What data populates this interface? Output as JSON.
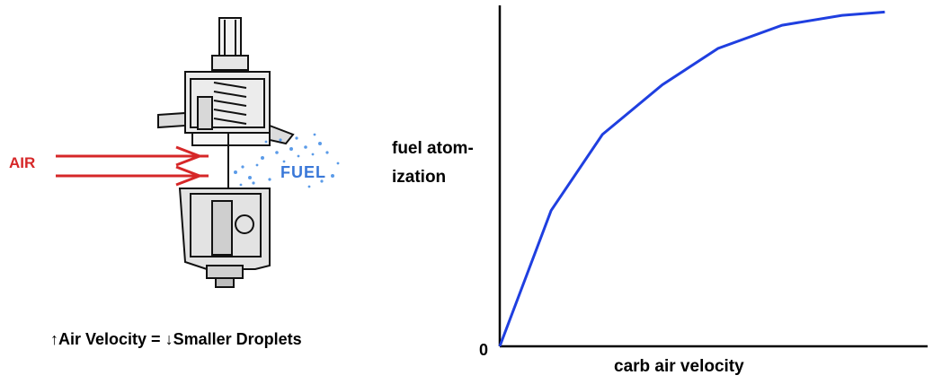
{
  "diagram": {
    "air_label": "AIR",
    "fuel_label": "FUEL",
    "icon": "carburetor-cutaway"
  },
  "caption": {
    "up_arrow": "↑",
    "part1": "Air Velocity = ",
    "down_arrow": "↓",
    "part2": "Smaller Droplets"
  },
  "colors": {
    "air": "#d62728",
    "fuel": "#3a78d8",
    "curve": "#1f3fe0"
  },
  "chart_data": {
    "type": "line",
    "title": "",
    "xlabel": "carb air velocity",
    "ylabel_line1": "fuel atom-",
    "ylabel_line2": "ization",
    "origin_label": "0",
    "x": [
      0,
      0.12,
      0.24,
      0.38,
      0.51,
      0.66,
      0.8,
      0.9
    ],
    "y": [
      0,
      0.41,
      0.64,
      0.79,
      0.9,
      0.97,
      1.0,
      1.01
    ],
    "xlim": [
      0,
      1.0
    ],
    "ylim": [
      0,
      1.03
    ],
    "grid": false,
    "legend": false
  }
}
